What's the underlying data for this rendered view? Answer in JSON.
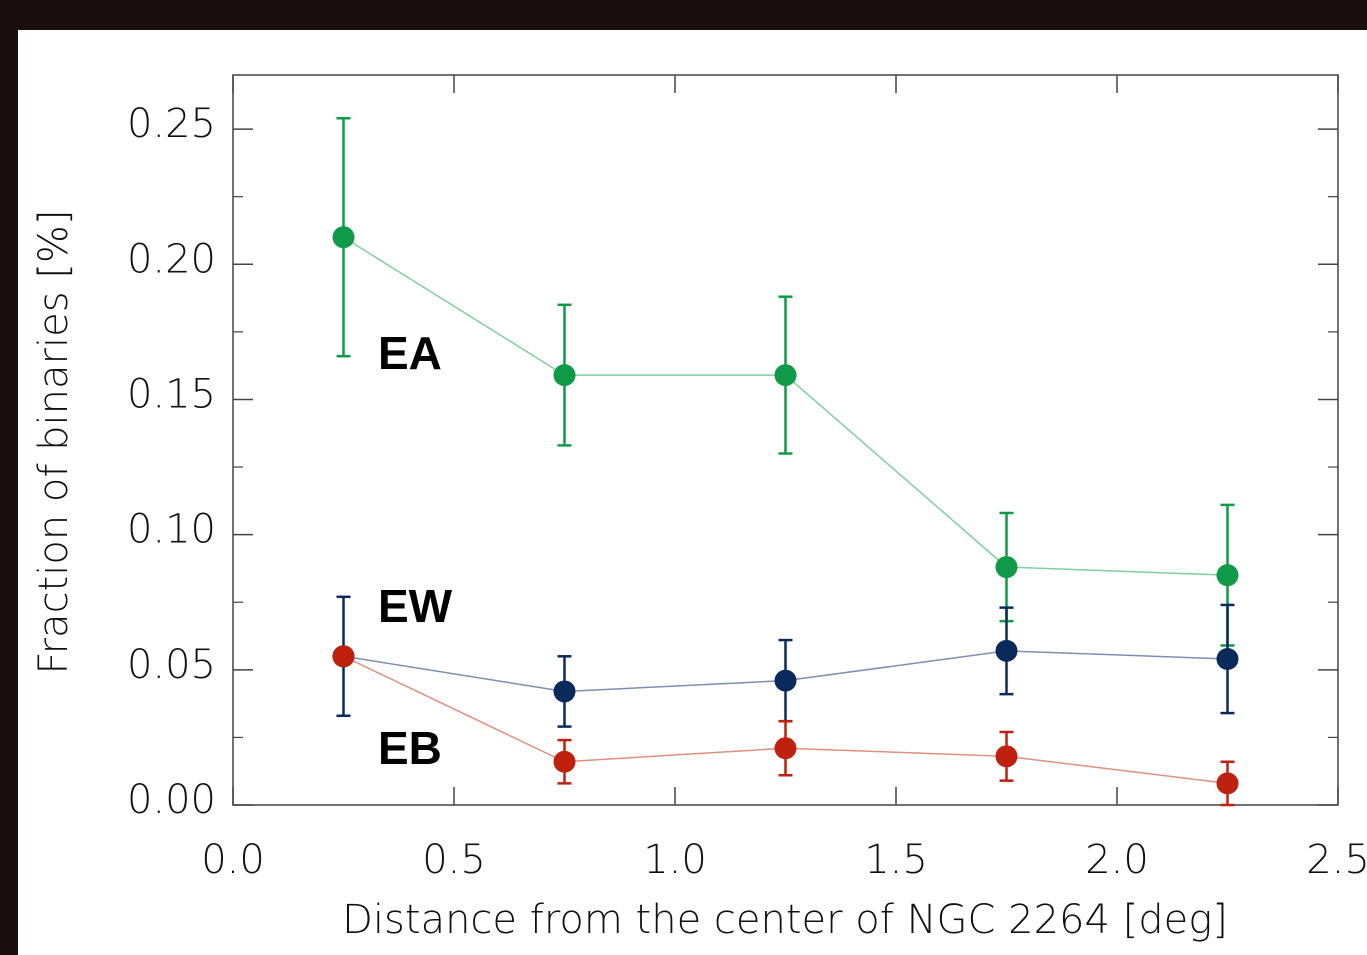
{
  "chart_data": {
    "type": "errorbar-line",
    "xlabel": "Distance from the center of NGC 2264 [deg]",
    "ylabel": "Fraction of binaries [%]",
    "x": [
      0.25,
      0.75,
      1.25,
      1.75,
      2.25
    ],
    "series": [
      {
        "name": "EA",
        "color": "#0f9a48",
        "line_color": "#7fcf9f",
        "values": [
          0.21,
          0.159,
          0.159,
          0.088,
          0.085
        ],
        "errors": [
          0.044,
          0.026,
          0.029,
          0.02,
          0.026
        ]
      },
      {
        "name": "EW",
        "color": "#0b2a5c",
        "line_color": "#7d8fb0",
        "values": [
          0.055,
          0.042,
          0.046,
          0.057,
          0.054
        ],
        "errors": [
          0.022,
          0.013,
          0.015,
          0.016,
          0.02
        ]
      },
      {
        "name": "EB",
        "color": "#c0200e",
        "line_color": "#e0907f",
        "values": [
          0.055,
          0.016,
          0.021,
          0.018,
          0.008
        ],
        "errors": [
          null,
          0.008,
          0.01,
          0.009,
          0.008
        ]
      }
    ],
    "xlim": [
      0,
      2.5
    ],
    "ylim": [
      0,
      0.27
    ],
    "xticks": [
      {
        "value": 0,
        "label": "0.0"
      },
      0.5,
      {
        "value": 1,
        "label": "1.0"
      },
      1.5,
      {
        "value": 2,
        "label": "2.0"
      },
      2.5
    ],
    "yticks": [
      {
        "value": 0,
        "label": "0.00"
      },
      0.05,
      {
        "value": 0.1,
        "label": "0.10"
      },
      0.15,
      {
        "value": 0.2,
        "label": "0.20"
      },
      0.25
    ],
    "y_minor_ticks": [
      0.025,
      0.075,
      0.125,
      0.175,
      0.225
    ],
    "grid": false
  }
}
